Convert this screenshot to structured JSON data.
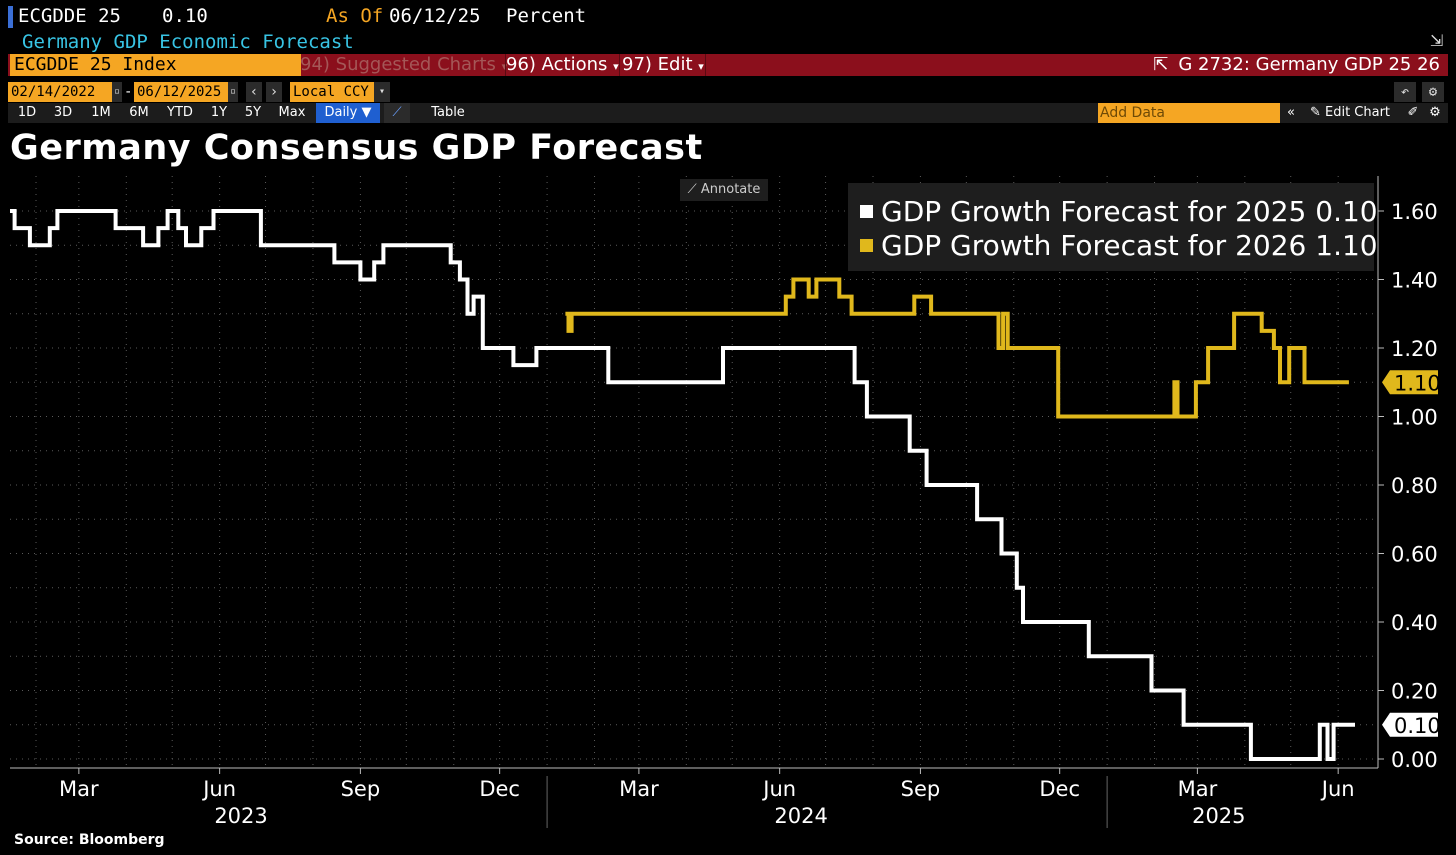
{
  "header": {
    "ticker": "ECGDDE 25",
    "value": "0.10",
    "as_of_label": "As Of",
    "as_of_date": "06/12/25",
    "unit": "Percent",
    "subtitle": "Germany GDP Economic Forecast"
  },
  "toolbar": {
    "index_label": "ECGDDE 25 Index",
    "suggested_charts": "94) Suggested Charts",
    "actions": "96) Actions",
    "edit": "97) Edit",
    "chart_code": "G 2732: Germany GDP 25 26"
  },
  "date_range": {
    "start": "02/14/2022",
    "end": "06/12/2025",
    "currency": "Local CCY"
  },
  "timeframes": [
    "1D",
    "3D",
    "1M",
    "6M",
    "YTD",
    "1Y",
    "5Y",
    "Max"
  ],
  "frequency": "Daily",
  "table_label": "Table",
  "add_data_placeholder": "Add Data",
  "edit_chart_label": "Edit Chart",
  "annotate_label": "Annotate",
  "source": "Source: Bloomberg",
  "colors": {
    "accent_orange": "#f5a623",
    "bar_red": "#8b0f1c",
    "series_2025": "#ffffff",
    "series_2026": "#e0b81c",
    "subtitle_blue": "#38c4e4"
  },
  "chart_data": {
    "type": "line",
    "title": "Germany Consensus GDP Forecast",
    "ylim": [
      0,
      1.65
    ],
    "y_ticks": [
      "1.60",
      "1.40",
      "1.20",
      "1.00",
      "0.80",
      "0.60",
      "0.40",
      "0.20",
      "0.00"
    ],
    "y_tick_values": [
      1.6,
      1.4,
      1.2,
      1.0,
      0.8,
      0.6,
      0.4,
      0.2,
      0.0
    ],
    "x_month_labels": [
      "Mar",
      "Jun",
      "Sep",
      "Dec",
      "Mar",
      "Jun",
      "Sep",
      "Dec",
      "Mar",
      "Jun"
    ],
    "x_month_dates": [
      "2023-03-01",
      "2023-06-01",
      "2023-09-01",
      "2023-12-01",
      "2024-03-01",
      "2024-06-01",
      "2024-09-01",
      "2024-12-01",
      "2025-03-01",
      "2025-06-01"
    ],
    "x_year_labels": [
      "2023",
      "2024",
      "2025"
    ],
    "x_year_dates": [
      "2023-06-15",
      "2024-06-15",
      "2025-03-15"
    ],
    "x_range": [
      "2023-01-15",
      "2025-06-12"
    ],
    "grid": true,
    "legend_position": "top-right",
    "series": [
      {
        "name": "GDP Growth Forecast for 2025",
        "last_label": "0.10",
        "color": "#ffffff",
        "points": [
          [
            "2023-01-15",
            1.6
          ],
          [
            "2023-01-18",
            1.55
          ],
          [
            "2023-01-28",
            1.5
          ],
          [
            "2023-02-10",
            1.55
          ],
          [
            "2023-02-15",
            1.6
          ],
          [
            "2023-03-25",
            1.55
          ],
          [
            "2023-04-12",
            1.5
          ],
          [
            "2023-04-22",
            1.55
          ],
          [
            "2023-04-28",
            1.6
          ],
          [
            "2023-05-05",
            1.55
          ],
          [
            "2023-05-10",
            1.5
          ],
          [
            "2023-05-20",
            1.55
          ],
          [
            "2023-05-28",
            1.6
          ],
          [
            "2023-06-28",
            1.5
          ],
          [
            "2023-08-15",
            1.45
          ],
          [
            "2023-09-01",
            1.4
          ],
          [
            "2023-09-10",
            1.45
          ],
          [
            "2023-09-16",
            1.5
          ],
          [
            "2023-10-30",
            1.45
          ],
          [
            "2023-11-05",
            1.4
          ],
          [
            "2023-11-10",
            1.3
          ],
          [
            "2023-11-14",
            1.35
          ],
          [
            "2023-11-20",
            1.2
          ],
          [
            "2023-12-10",
            1.15
          ],
          [
            "2023-12-25",
            1.2
          ],
          [
            "2024-02-10",
            1.1
          ],
          [
            "2024-04-25",
            1.2
          ],
          [
            "2024-07-20",
            1.1
          ],
          [
            "2024-07-28",
            1.0
          ],
          [
            "2024-08-25",
            0.9
          ],
          [
            "2024-09-05",
            0.8
          ],
          [
            "2024-10-08",
            0.7
          ],
          [
            "2024-10-24",
            0.6
          ],
          [
            "2024-11-03",
            0.5
          ],
          [
            "2024-11-07",
            0.4
          ],
          [
            "2024-12-20",
            0.3
          ],
          [
            "2025-01-30",
            0.2
          ],
          [
            "2025-02-20",
            0.1
          ],
          [
            "2025-04-05",
            0.0
          ],
          [
            "2025-05-20",
            0.1
          ],
          [
            "2025-05-25",
            0.0
          ],
          [
            "2025-05-29",
            0.1
          ],
          [
            "2025-06-12",
            0.1
          ]
        ]
      },
      {
        "name": "GDP Growth Forecast for 2026",
        "last_label": "1.10",
        "color": "#e0b81c",
        "points": [
          [
            "2024-01-13",
            1.3
          ],
          [
            "2024-01-15",
            1.25
          ],
          [
            "2024-01-17",
            1.3
          ],
          [
            "2024-06-05",
            1.35
          ],
          [
            "2024-06-10",
            1.4
          ],
          [
            "2024-06-20",
            1.35
          ],
          [
            "2024-06-25",
            1.4
          ],
          [
            "2024-07-10",
            1.35
          ],
          [
            "2024-07-18",
            1.3
          ],
          [
            "2024-08-28",
            1.35
          ],
          [
            "2024-09-08",
            1.3
          ],
          [
            "2024-10-22",
            1.2
          ],
          [
            "2024-10-25",
            1.3
          ],
          [
            "2024-10-28",
            1.2
          ],
          [
            "2024-11-30",
            1.0
          ],
          [
            "2025-02-14",
            1.1
          ],
          [
            "2025-02-16",
            1.0
          ],
          [
            "2025-02-28",
            1.1
          ],
          [
            "2025-03-08",
            1.2
          ],
          [
            "2025-03-25",
            1.3
          ],
          [
            "2025-04-12",
            1.25
          ],
          [
            "2025-04-20",
            1.2
          ],
          [
            "2025-04-24",
            1.1
          ],
          [
            "2025-04-30",
            1.2
          ],
          [
            "2025-05-10",
            1.1
          ],
          [
            "2025-06-08",
            1.1
          ]
        ]
      }
    ]
  }
}
